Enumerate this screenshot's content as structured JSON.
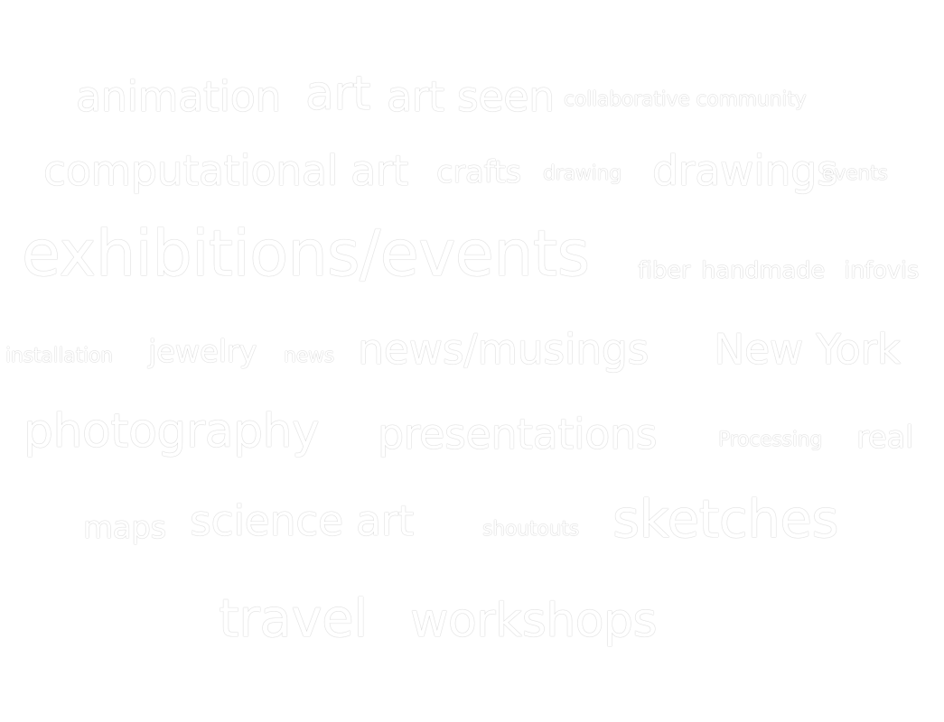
{
  "tag_cloud": {
    "tags": [
      {
        "label": "animation"
      },
      {
        "label": "art"
      },
      {
        "label": "art seen"
      },
      {
        "label": "collaborative community"
      },
      {
        "label": "computational art"
      },
      {
        "label": "crafts"
      },
      {
        "label": "drawing"
      },
      {
        "label": "drawings"
      },
      {
        "label": "events"
      },
      {
        "label": "exhibitions/events"
      },
      {
        "label": "fiber"
      },
      {
        "label": "handmade"
      },
      {
        "label": "infovis"
      },
      {
        "label": "installation"
      },
      {
        "label": "jewelry"
      },
      {
        "label": "news"
      },
      {
        "label": "news/musings"
      },
      {
        "label": "New York"
      },
      {
        "label": "photography"
      },
      {
        "label": "presentations"
      },
      {
        "label": "Processing"
      },
      {
        "label": "real"
      },
      {
        "label": "maps"
      },
      {
        "label": "science art"
      },
      {
        "label": "shoutouts"
      },
      {
        "label": "sketches"
      },
      {
        "label": "travel"
      },
      {
        "label": "workshops"
      }
    ],
    "text_color": "#ffffff"
  }
}
